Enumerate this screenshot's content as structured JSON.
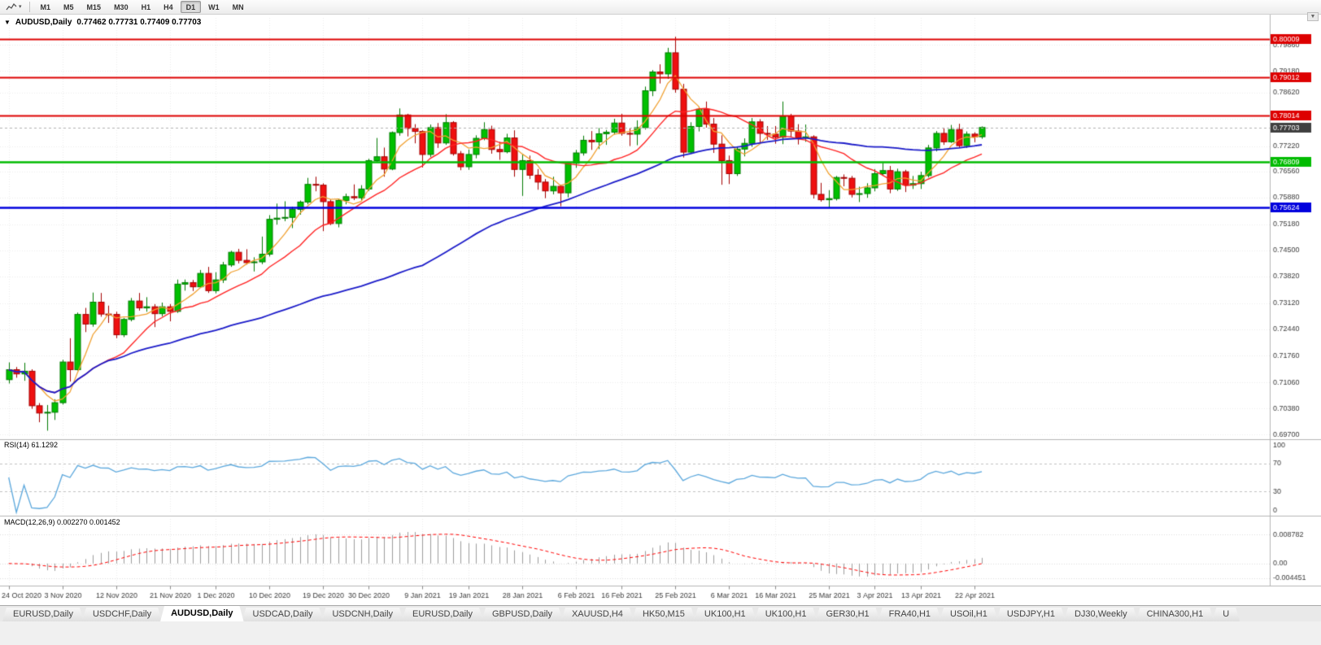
{
  "ui": {
    "toolbar": {
      "timeframes": [
        "M1",
        "M5",
        "M15",
        "M30",
        "H1",
        "H4",
        "D1",
        "W1",
        "MN"
      ],
      "active_timeframe": "D1"
    },
    "title": {
      "arrow": "▼",
      "symbol": "AUDUSD,Daily",
      "ohlc": "0.77462 0.77731 0.77409 0.77703"
    },
    "scale_arrow": "▼",
    "tabs": [
      "EURUSD,Daily",
      "USDCHF,Daily",
      "AUDUSD,Daily",
      "USDCAD,Daily",
      "USDCNH,Daily",
      "EURUSD,Daily",
      "GBPUSD,Daily",
      "XAUUSD,H4",
      "HK50,M15",
      "UK100,H1",
      "UK100,H1",
      "GER30,H1",
      "FRA40,H1",
      "USOil,H1",
      "USDJPY,H1",
      "DJ30,Weekly",
      "CHINA300,H1",
      "U"
    ],
    "active_tab_index": 2
  },
  "chart_data": {
    "type": "candlestick",
    "symbol": "AUDUSD",
    "timeframe": "Daily",
    "price_range": {
      "max": 0.8056,
      "min": 0.6962
    },
    "price_axis_labels": [
      "0.79860",
      "0.79180",
      "0.78620",
      "0.77940",
      "0.77220",
      "0.76560",
      "0.75880",
      "0.75180",
      "0.74500",
      "0.73820",
      "0.73120",
      "0.72440",
      "0.71760",
      "0.71060",
      "0.70380",
      "0.69700"
    ],
    "horizontal_lines": [
      {
        "label": "0.80009",
        "value": 0.80009,
        "color": "#dd0000",
        "width": 2
      },
      {
        "label": "0.79012",
        "value": 0.79012,
        "color": "#dd0000",
        "width": 2
      },
      {
        "label": "0.78014",
        "value": 0.78014,
        "color": "#dd0000",
        "width": 2
      },
      {
        "label": "0.76809",
        "value": 0.76809,
        "color": "#00bb00",
        "width": 2.4
      },
      {
        "label": "0.75624",
        "value": 0.75624,
        "color": "#0000dd",
        "width": 2.4
      }
    ],
    "current_price": {
      "label": "0.77703",
      "value": 0.77703
    },
    "date_axis": [
      {
        "label": "24 Oct 2020",
        "index": 0
      },
      {
        "label": "3 Nov 2020",
        "index": 7
      },
      {
        "label": "12 Nov 2020",
        "index": 14
      },
      {
        "label": "21 Nov 2020",
        "index": 21
      },
      {
        "label": "1 Dec 2020",
        "index": 27
      },
      {
        "label": "10 Dec 2020",
        "index": 34
      },
      {
        "label": "19 Dec 2020",
        "index": 41
      },
      {
        "label": "30 Dec 2020",
        "index": 47
      },
      {
        "label": "9 Jan 2021",
        "index": 54
      },
      {
        "label": "19 Jan 2021",
        "index": 60
      },
      {
        "label": "28 Jan 2021",
        "index": 67
      },
      {
        "label": "6 Feb 2021",
        "index": 74
      },
      {
        "label": "16 Feb 2021",
        "index": 80
      },
      {
        "label": "25 Feb 2021",
        "index": 87
      },
      {
        "label": "6 Mar 2021",
        "index": 94
      },
      {
        "label": "16 Mar 2021",
        "index": 100
      },
      {
        "label": "25 Mar 2021",
        "index": 107
      },
      {
        "label": "3 Apr 2021",
        "index": 113
      },
      {
        "label": "13 Apr 2021",
        "index": 119
      },
      {
        "label": "22 Apr 2021",
        "index": 126
      }
    ],
    "moving_averages": [
      {
        "period": 5,
        "color": "#f0a030",
        "width": 1.3
      },
      {
        "period": 13,
        "color": "#ff2222",
        "width": 1.4
      },
      {
        "period": 55,
        "color": "#1a1ac8",
        "width": 1.8
      }
    ],
    "candles_ohlc": [
      [
        0.7113,
        0.7158,
        0.7103,
        0.7139
      ],
      [
        0.7139,
        0.7146,
        0.7118,
        0.7128
      ],
      [
        0.7128,
        0.7157,
        0.711,
        0.7135
      ],
      [
        0.7135,
        0.714,
        0.7037,
        0.7045
      ],
      [
        0.7045,
        0.7052,
        0.7002,
        0.7026
      ],
      [
        0.7026,
        0.7047,
        0.698,
        0.7028
      ],
      [
        0.7028,
        0.7062,
        0.7008,
        0.7053
      ],
      [
        0.7053,
        0.7165,
        0.7048,
        0.7159
      ],
      [
        0.7159,
        0.7221,
        0.7108,
        0.7139
      ],
      [
        0.7139,
        0.7288,
        0.7137,
        0.7283
      ],
      [
        0.7283,
        0.73,
        0.7237,
        0.7258
      ],
      [
        0.7258,
        0.734,
        0.7251,
        0.7315
      ],
      [
        0.7315,
        0.7339,
        0.7277,
        0.7284
      ],
      [
        0.7284,
        0.7306,
        0.7261,
        0.7283
      ],
      [
        0.7283,
        0.729,
        0.7221,
        0.723
      ],
      [
        0.723,
        0.7274,
        0.7224,
        0.727
      ],
      [
        0.727,
        0.7326,
        0.7265,
        0.7318
      ],
      [
        0.7318,
        0.7339,
        0.7293,
        0.73
      ],
      [
        0.73,
        0.7328,
        0.729,
        0.7303
      ],
      [
        0.7303,
        0.731,
        0.725,
        0.7285
      ],
      [
        0.7285,
        0.7314,
        0.7278,
        0.7303
      ],
      [
        0.7303,
        0.731,
        0.7265,
        0.7291
      ],
      [
        0.7291,
        0.7374,
        0.7287,
        0.7362
      ],
      [
        0.7362,
        0.7374,
        0.7345,
        0.7366
      ],
      [
        0.7366,
        0.7373,
        0.7344,
        0.7355
      ],
      [
        0.7355,
        0.7399,
        0.7352,
        0.739
      ],
      [
        0.739,
        0.7407,
        0.7339,
        0.7345
      ],
      [
        0.7345,
        0.7393,
        0.7338,
        0.7373
      ],
      [
        0.7373,
        0.742,
        0.7365,
        0.7412
      ],
      [
        0.7412,
        0.7449,
        0.7407,
        0.7445
      ],
      [
        0.7445,
        0.7454,
        0.7416,
        0.7424
      ],
      [
        0.7424,
        0.7453,
        0.7413,
        0.7418
      ],
      [
        0.7418,
        0.7432,
        0.7395,
        0.742
      ],
      [
        0.742,
        0.7486,
        0.7414,
        0.744
      ],
      [
        0.744,
        0.7542,
        0.7434,
        0.7531
      ],
      [
        0.7531,
        0.7572,
        0.7517,
        0.7534
      ],
      [
        0.7534,
        0.7578,
        0.7526,
        0.7536
      ],
      [
        0.7536,
        0.7564,
        0.7508,
        0.7557
      ],
      [
        0.7557,
        0.758,
        0.7543,
        0.7576
      ],
      [
        0.7576,
        0.7639,
        0.757,
        0.7622
      ],
      [
        0.7622,
        0.7642,
        0.7604,
        0.762
      ],
      [
        0.762,
        0.7625,
        0.75,
        0.7577
      ],
      [
        0.7577,
        0.7583,
        0.7516,
        0.752
      ],
      [
        0.752,
        0.7585,
        0.751,
        0.758
      ],
      [
        0.758,
        0.7598,
        0.757,
        0.759
      ],
      [
        0.759,
        0.7622,
        0.7581,
        0.7587
      ],
      [
        0.7587,
        0.762,
        0.758,
        0.761
      ],
      [
        0.761,
        0.7689,
        0.7605,
        0.7684
      ],
      [
        0.7684,
        0.7743,
        0.7681,
        0.7694
      ],
      [
        0.7694,
        0.7718,
        0.7642,
        0.7662
      ],
      [
        0.7662,
        0.776,
        0.7659,
        0.7757
      ],
      [
        0.7757,
        0.782,
        0.7749,
        0.7803
      ],
      [
        0.7803,
        0.7806,
        0.7747,
        0.7768
      ],
      [
        0.7768,
        0.7779,
        0.7729,
        0.776
      ],
      [
        0.776,
        0.7763,
        0.7666,
        0.77
      ],
      [
        0.77,
        0.7778,
        0.7693,
        0.777
      ],
      [
        0.777,
        0.7782,
        0.7717,
        0.773
      ],
      [
        0.773,
        0.7805,
        0.7725,
        0.7783
      ],
      [
        0.7783,
        0.7787,
        0.7697,
        0.7702
      ],
      [
        0.7702,
        0.7709,
        0.7659,
        0.7668
      ],
      [
        0.7668,
        0.7713,
        0.766,
        0.77
      ],
      [
        0.77,
        0.775,
        0.769,
        0.7742
      ],
      [
        0.7742,
        0.7784,
        0.7737,
        0.7765
      ],
      [
        0.7765,
        0.7775,
        0.7702,
        0.7713
      ],
      [
        0.7713,
        0.7733,
        0.7686,
        0.7707
      ],
      [
        0.7707,
        0.7754,
        0.7703,
        0.7743
      ],
      [
        0.7743,
        0.7763,
        0.7642,
        0.7661
      ],
      [
        0.7661,
        0.7701,
        0.7592,
        0.7684
      ],
      [
        0.7684,
        0.7697,
        0.7636,
        0.7646
      ],
      [
        0.7646,
        0.7662,
        0.7608,
        0.7628
      ],
      [
        0.7628,
        0.7636,
        0.7586,
        0.7605
      ],
      [
        0.7605,
        0.7642,
        0.7596,
        0.7617
      ],
      [
        0.7617,
        0.7621,
        0.7565,
        0.76
      ],
      [
        0.76,
        0.768,
        0.7588,
        0.7677
      ],
      [
        0.7677,
        0.7712,
        0.7665,
        0.7704
      ],
      [
        0.7704,
        0.7749,
        0.7697,
        0.7737
      ],
      [
        0.7737,
        0.7761,
        0.7712,
        0.7733
      ],
      [
        0.7733,
        0.7769,
        0.7714,
        0.7754
      ],
      [
        0.7754,
        0.7764,
        0.7725,
        0.7758
      ],
      [
        0.7758,
        0.7793,
        0.7752,
        0.7782
      ],
      [
        0.7782,
        0.7806,
        0.7749,
        0.7755
      ],
      [
        0.7755,
        0.7768,
        0.7722,
        0.7753
      ],
      [
        0.7753,
        0.7789,
        0.7724,
        0.777
      ],
      [
        0.777,
        0.7877,
        0.7765,
        0.7866
      ],
      [
        0.7866,
        0.792,
        0.7852,
        0.7915
      ],
      [
        0.7915,
        0.7935,
        0.7885,
        0.791
      ],
      [
        0.791,
        0.7978,
        0.7897,
        0.7965
      ],
      [
        0.7965,
        0.8007,
        0.7861,
        0.787
      ],
      [
        0.787,
        0.7884,
        0.7692,
        0.7706
      ],
      [
        0.7706,
        0.7784,
        0.7704,
        0.7773
      ],
      [
        0.7773,
        0.7825,
        0.776,
        0.7818
      ],
      [
        0.7818,
        0.7838,
        0.777,
        0.7779
      ],
      [
        0.7779,
        0.7795,
        0.7704,
        0.7727
      ],
      [
        0.7727,
        0.775,
        0.7621,
        0.7684
      ],
      [
        0.7684,
        0.7697,
        0.7623,
        0.765
      ],
      [
        0.765,
        0.7721,
        0.7644,
        0.7714
      ],
      [
        0.7714,
        0.7742,
        0.7695,
        0.7729
      ],
      [
        0.7729,
        0.7795,
        0.772,
        0.7785
      ],
      [
        0.7785,
        0.7792,
        0.7731,
        0.7755
      ],
      [
        0.7755,
        0.7774,
        0.7738,
        0.7753
      ],
      [
        0.7753,
        0.7774,
        0.7728,
        0.7745
      ],
      [
        0.7745,
        0.7838,
        0.7727,
        0.78
      ],
      [
        0.78,
        0.7806,
        0.7745,
        0.7761
      ],
      [
        0.7761,
        0.7779,
        0.7726,
        0.7743
      ],
      [
        0.7743,
        0.7778,
        0.7733,
        0.7746
      ],
      [
        0.7746,
        0.775,
        0.7585,
        0.7596
      ],
      [
        0.7596,
        0.7626,
        0.7577,
        0.7582
      ],
      [
        0.7582,
        0.7607,
        0.7562,
        0.7585
      ],
      [
        0.7585,
        0.7644,
        0.758,
        0.764
      ],
      [
        0.764,
        0.7648,
        0.7617,
        0.7638
      ],
      [
        0.7638,
        0.7644,
        0.7588,
        0.7596
      ],
      [
        0.7596,
        0.7616,
        0.7576,
        0.7598
      ],
      [
        0.7598,
        0.7625,
        0.7587,
        0.7613
      ],
      [
        0.7613,
        0.7662,
        0.7604,
        0.765
      ],
      [
        0.765,
        0.7678,
        0.7644,
        0.7658
      ],
      [
        0.7658,
        0.767,
        0.7599,
        0.761
      ],
      [
        0.761,
        0.7663,
        0.7605,
        0.7655
      ],
      [
        0.7655,
        0.766,
        0.7602,
        0.762
      ],
      [
        0.762,
        0.7644,
        0.761,
        0.7624
      ],
      [
        0.7624,
        0.7655,
        0.761,
        0.7645
      ],
      [
        0.7645,
        0.7725,
        0.764,
        0.7717
      ],
      [
        0.7717,
        0.7761,
        0.7708,
        0.7755
      ],
      [
        0.7755,
        0.777,
        0.7725,
        0.7733
      ],
      [
        0.7733,
        0.7777,
        0.773,
        0.7765
      ],
      [
        0.7765,
        0.778,
        0.7717,
        0.7723
      ],
      [
        0.7723,
        0.776,
        0.7717,
        0.7753
      ],
      [
        0.7753,
        0.7758,
        0.7732,
        0.7746
      ],
      [
        0.77462,
        0.77731,
        0.77409,
        0.77703
      ]
    ],
    "rsi": {
      "label": "RSI(14) 61.1292",
      "period": 14,
      "levels": [
        {
          "label": "100",
          "value": 100
        },
        {
          "label": "70",
          "value": 70
        },
        {
          "label": "30",
          "value": 30
        },
        {
          "label": "0",
          "value": 0
        }
      ],
      "dashed_levels": [
        70,
        30
      ]
    },
    "macd": {
      "label": "MACD(12,26,9) 0.002270 0.001452",
      "fast": 12,
      "slow": 26,
      "signal": 9,
      "axis_labels": [
        {
          "label": "0.008782",
          "value": 0.008782
        },
        {
          "label": "0.00",
          "value": 0
        },
        {
          "label": "-0.004451",
          "value": -0.004451
        }
      ],
      "range": {
        "max": 0.0135,
        "min": -0.0062
      }
    }
  },
  "colors": {
    "bull": "#00c000",
    "bull_border": "#007a00",
    "bear": "#ef1010",
    "bear_border": "#a30000",
    "rsi_line": "#5ba7dc",
    "macd_hist": "#9c9c9c",
    "macd_signal": "#ff0000",
    "grid": "#ececec",
    "axis_text": "#3a3a3a",
    "separator": "#b4b4b4",
    "current_badge": "#3f3f3f",
    "current_line": "#b0b0b0"
  }
}
